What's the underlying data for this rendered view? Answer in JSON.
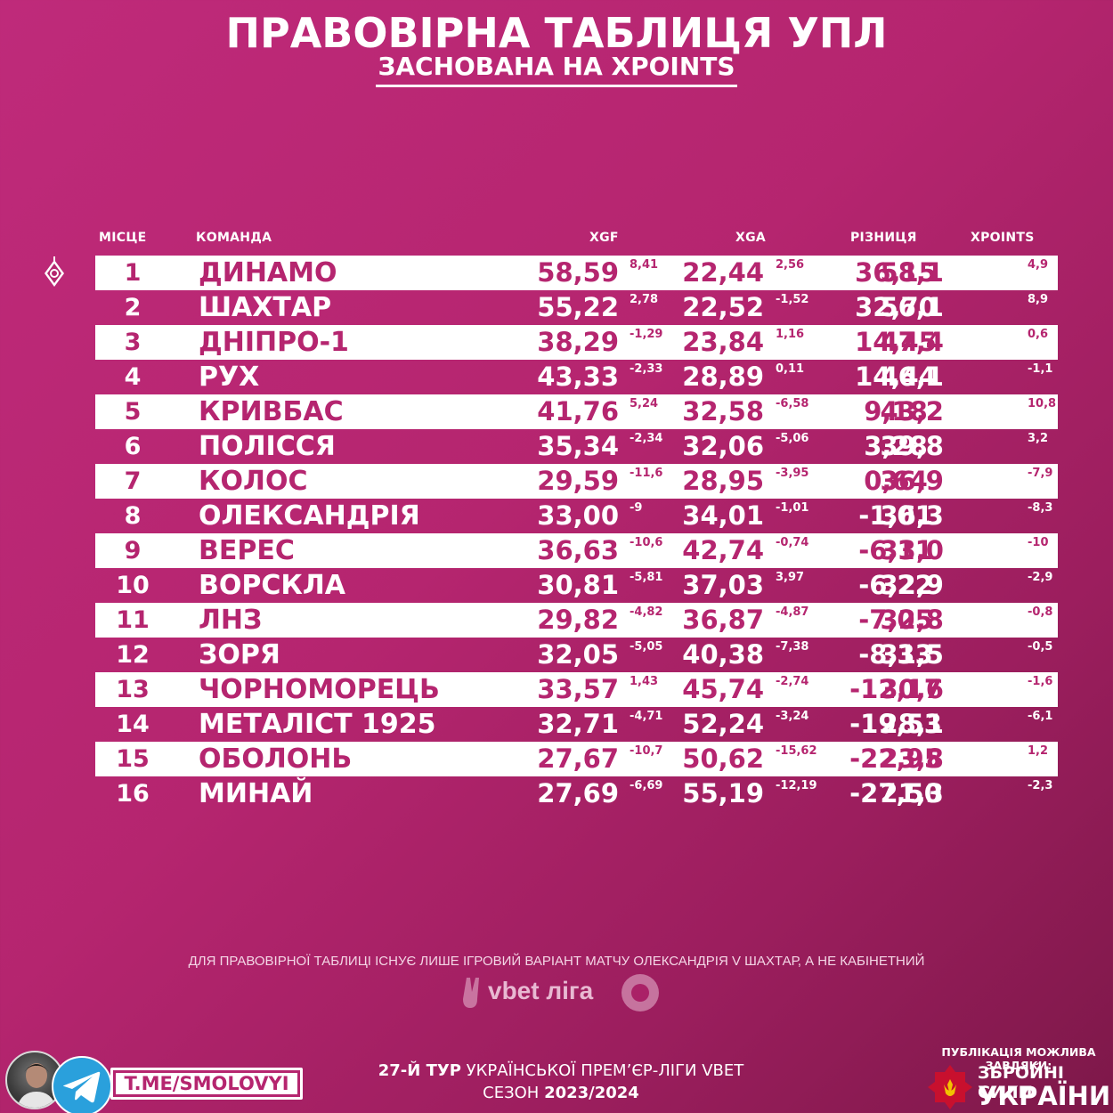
{
  "header": {
    "title": "ПРАВОВІРНА ТАБЛИЦЯ УПЛ",
    "subtitle": "ЗАСНОВАНА НА XPOINTS"
  },
  "columns": {
    "rank": "МІСЦЕ",
    "team": "КОМАНДА",
    "xgf": "XGF",
    "xga": "XGA",
    "diff": "РІЗНИЦЯ",
    "xpoints": "XPOINTS"
  },
  "rows": [
    {
      "rank": "1",
      "team": "ДИНАМО",
      "xgf": "58,59",
      "xgf_delta": "8,41",
      "xga": "22,44",
      "xga_delta": "2,56",
      "diff": "36,15",
      "xpoints": "58,1",
      "xpoints_delta": "4,9"
    },
    {
      "rank": "2",
      "team": "ШАХТАР",
      "xgf": "55,22",
      "xgf_delta": "2,78",
      "xga": "22,52",
      "xga_delta": "-1,52",
      "diff": "32,70",
      "xpoints": "56,1",
      "xpoints_delta": "8,9"
    },
    {
      "rank": "3",
      "team": "ДНІПРО-1",
      "xgf": "38,29",
      "xgf_delta": "-1,29",
      "xga": "23,84",
      "xga_delta": "1,16",
      "diff": "14,45",
      "xpoints": "47,4",
      "xpoints_delta": "0,6"
    },
    {
      "rank": "4",
      "team": "РУХ",
      "xgf": "43,33",
      "xgf_delta": "-2,33",
      "xga": "28,89",
      "xga_delta": "0,11",
      "diff": "14,44",
      "xpoints": "46,1",
      "xpoints_delta": "-1,1"
    },
    {
      "rank": "5",
      "team": "КРИВБАС",
      "xgf": "41,76",
      "xgf_delta": "5,24",
      "xga": "32,58",
      "xga_delta": "-6,58",
      "diff": "9,18",
      "xpoints": "43,2",
      "xpoints_delta": "10,8"
    },
    {
      "rank": "6",
      "team": "ПОЛІССЯ",
      "xgf": "35,34",
      "xgf_delta": "-2,34",
      "xga": "32,06",
      "xga_delta": "-5,06",
      "diff": "3,28",
      "xpoints": "39,8",
      "xpoints_delta": "3,2"
    },
    {
      "rank": "7",
      "team": "КОЛОС",
      "xgf": "29,59",
      "xgf_delta": "-11,6",
      "xga": "28,95",
      "xga_delta": "-3,95",
      "diff": "0,64",
      "xpoints": "36,9",
      "xpoints_delta": "-7,9"
    },
    {
      "rank": "8",
      "team": "ОЛЕКСАНДРІЯ",
      "xgf": "33,00",
      "xgf_delta": "-9",
      "xga": "34,01",
      "xga_delta": "-1,01",
      "diff": "-1,01",
      "xpoints": "36,3",
      "xpoints_delta": "-8,3"
    },
    {
      "rank": "9",
      "team": "ВЕРЕС",
      "xgf": "36,63",
      "xgf_delta": "-10,6",
      "xga": "42,74",
      "xga_delta": "-0,74",
      "diff": "-6,11",
      "xpoints": "33,0",
      "xpoints_delta": "-10"
    },
    {
      "rank": "10",
      "team": "ВОРСКЛА",
      "xgf": "30,81",
      "xgf_delta": "-5,81",
      "xga": "37,03",
      "xga_delta": "3,97",
      "diff": "-6,22",
      "xpoints": "32,9",
      "xpoints_delta": "-2,9"
    },
    {
      "rank": "11",
      "team": "ЛНЗ",
      "xgf": "29,82",
      "xgf_delta": "-4,82",
      "xga": "36,87",
      "xga_delta": "-4,87",
      "diff": "-7,05",
      "xpoints": "32,8",
      "xpoints_delta": "-0,8"
    },
    {
      "rank": "12",
      "team": "ЗОРЯ",
      "xgf": "32,05",
      "xgf_delta": "-5,05",
      "xga": "40,38",
      "xga_delta": "-7,38",
      "diff": "-8,33",
      "xpoints": "31,5",
      "xpoints_delta": "-0,5"
    },
    {
      "rank": "13",
      "team": "ЧОРНОМОРЕЦЬ",
      "xgf": "33,57",
      "xgf_delta": "1,43",
      "xga": "45,74",
      "xga_delta": "-2,74",
      "diff": "-12,17",
      "xpoints": "30,6",
      "xpoints_delta": "-1,6"
    },
    {
      "rank": "14",
      "team": "МЕТАЛІСТ 1925",
      "xgf": "32,71",
      "xgf_delta": "-4,71",
      "xga": "52,24",
      "xga_delta": "-3,24",
      "diff": "-19,53",
      "xpoints": "28,1",
      "xpoints_delta": "-6,1"
    },
    {
      "rank": "15",
      "team": "ОБОЛОНЬ",
      "xgf": "27,67",
      "xgf_delta": "-10,7",
      "xga": "50,62",
      "xga_delta": "-15,62",
      "diff": "-22,95",
      "xpoints": "23,8",
      "xpoints_delta": "1,2"
    },
    {
      "rank": "16",
      "team": "МИНАЙ",
      "xgf": "27,69",
      "xgf_delta": "-6,69",
      "xga": "55,19",
      "xga_delta": "-12,19",
      "diff": "-27,50",
      "xpoints": "21,3",
      "xpoints_delta": "-2,3"
    }
  ],
  "note": "ДЛЯ ПРАВОВІРНОЇ ТАБЛИЦІ ІСНУЄ ЛИШЕ ІГРОВИЙ ВАРІАНТ МАТЧУ ОЛЕКСАНДРІЯ V ШАХТАР, А НЕ КАБІНЕТНИЙ",
  "league_logo_text": "vbet ліга",
  "channel_link": "T.ME/SMOLOVYI",
  "footer": {
    "round_bold": "27-Й ТУР",
    "round_rest": " УКРАЇНСЬКОЇ ПРЕМ’ЄР-ЛІГИ VBET",
    "season_label": "СЕЗОН ",
    "season_bold": "2023/2024"
  },
  "sponsor": {
    "caption": "ПУБЛІКАЦІЯ МОЖЛИВА ЗАВДЯКИ:",
    "line1": "ЗБРОЙНІ СИЛИ",
    "line2": "УКРАЇНИ"
  },
  "icons": {
    "club_logo": "dynamo-logo-icon",
    "telegram": "telegram-icon",
    "emblem": "afu-emblem-icon",
    "avatar": "author-avatar"
  },
  "colors": {
    "background": "#b5256f",
    "row_light": "#ffffff",
    "accent": "#b5256f",
    "telegram": "#2aa0dc",
    "afu_red": "#c8102e"
  }
}
